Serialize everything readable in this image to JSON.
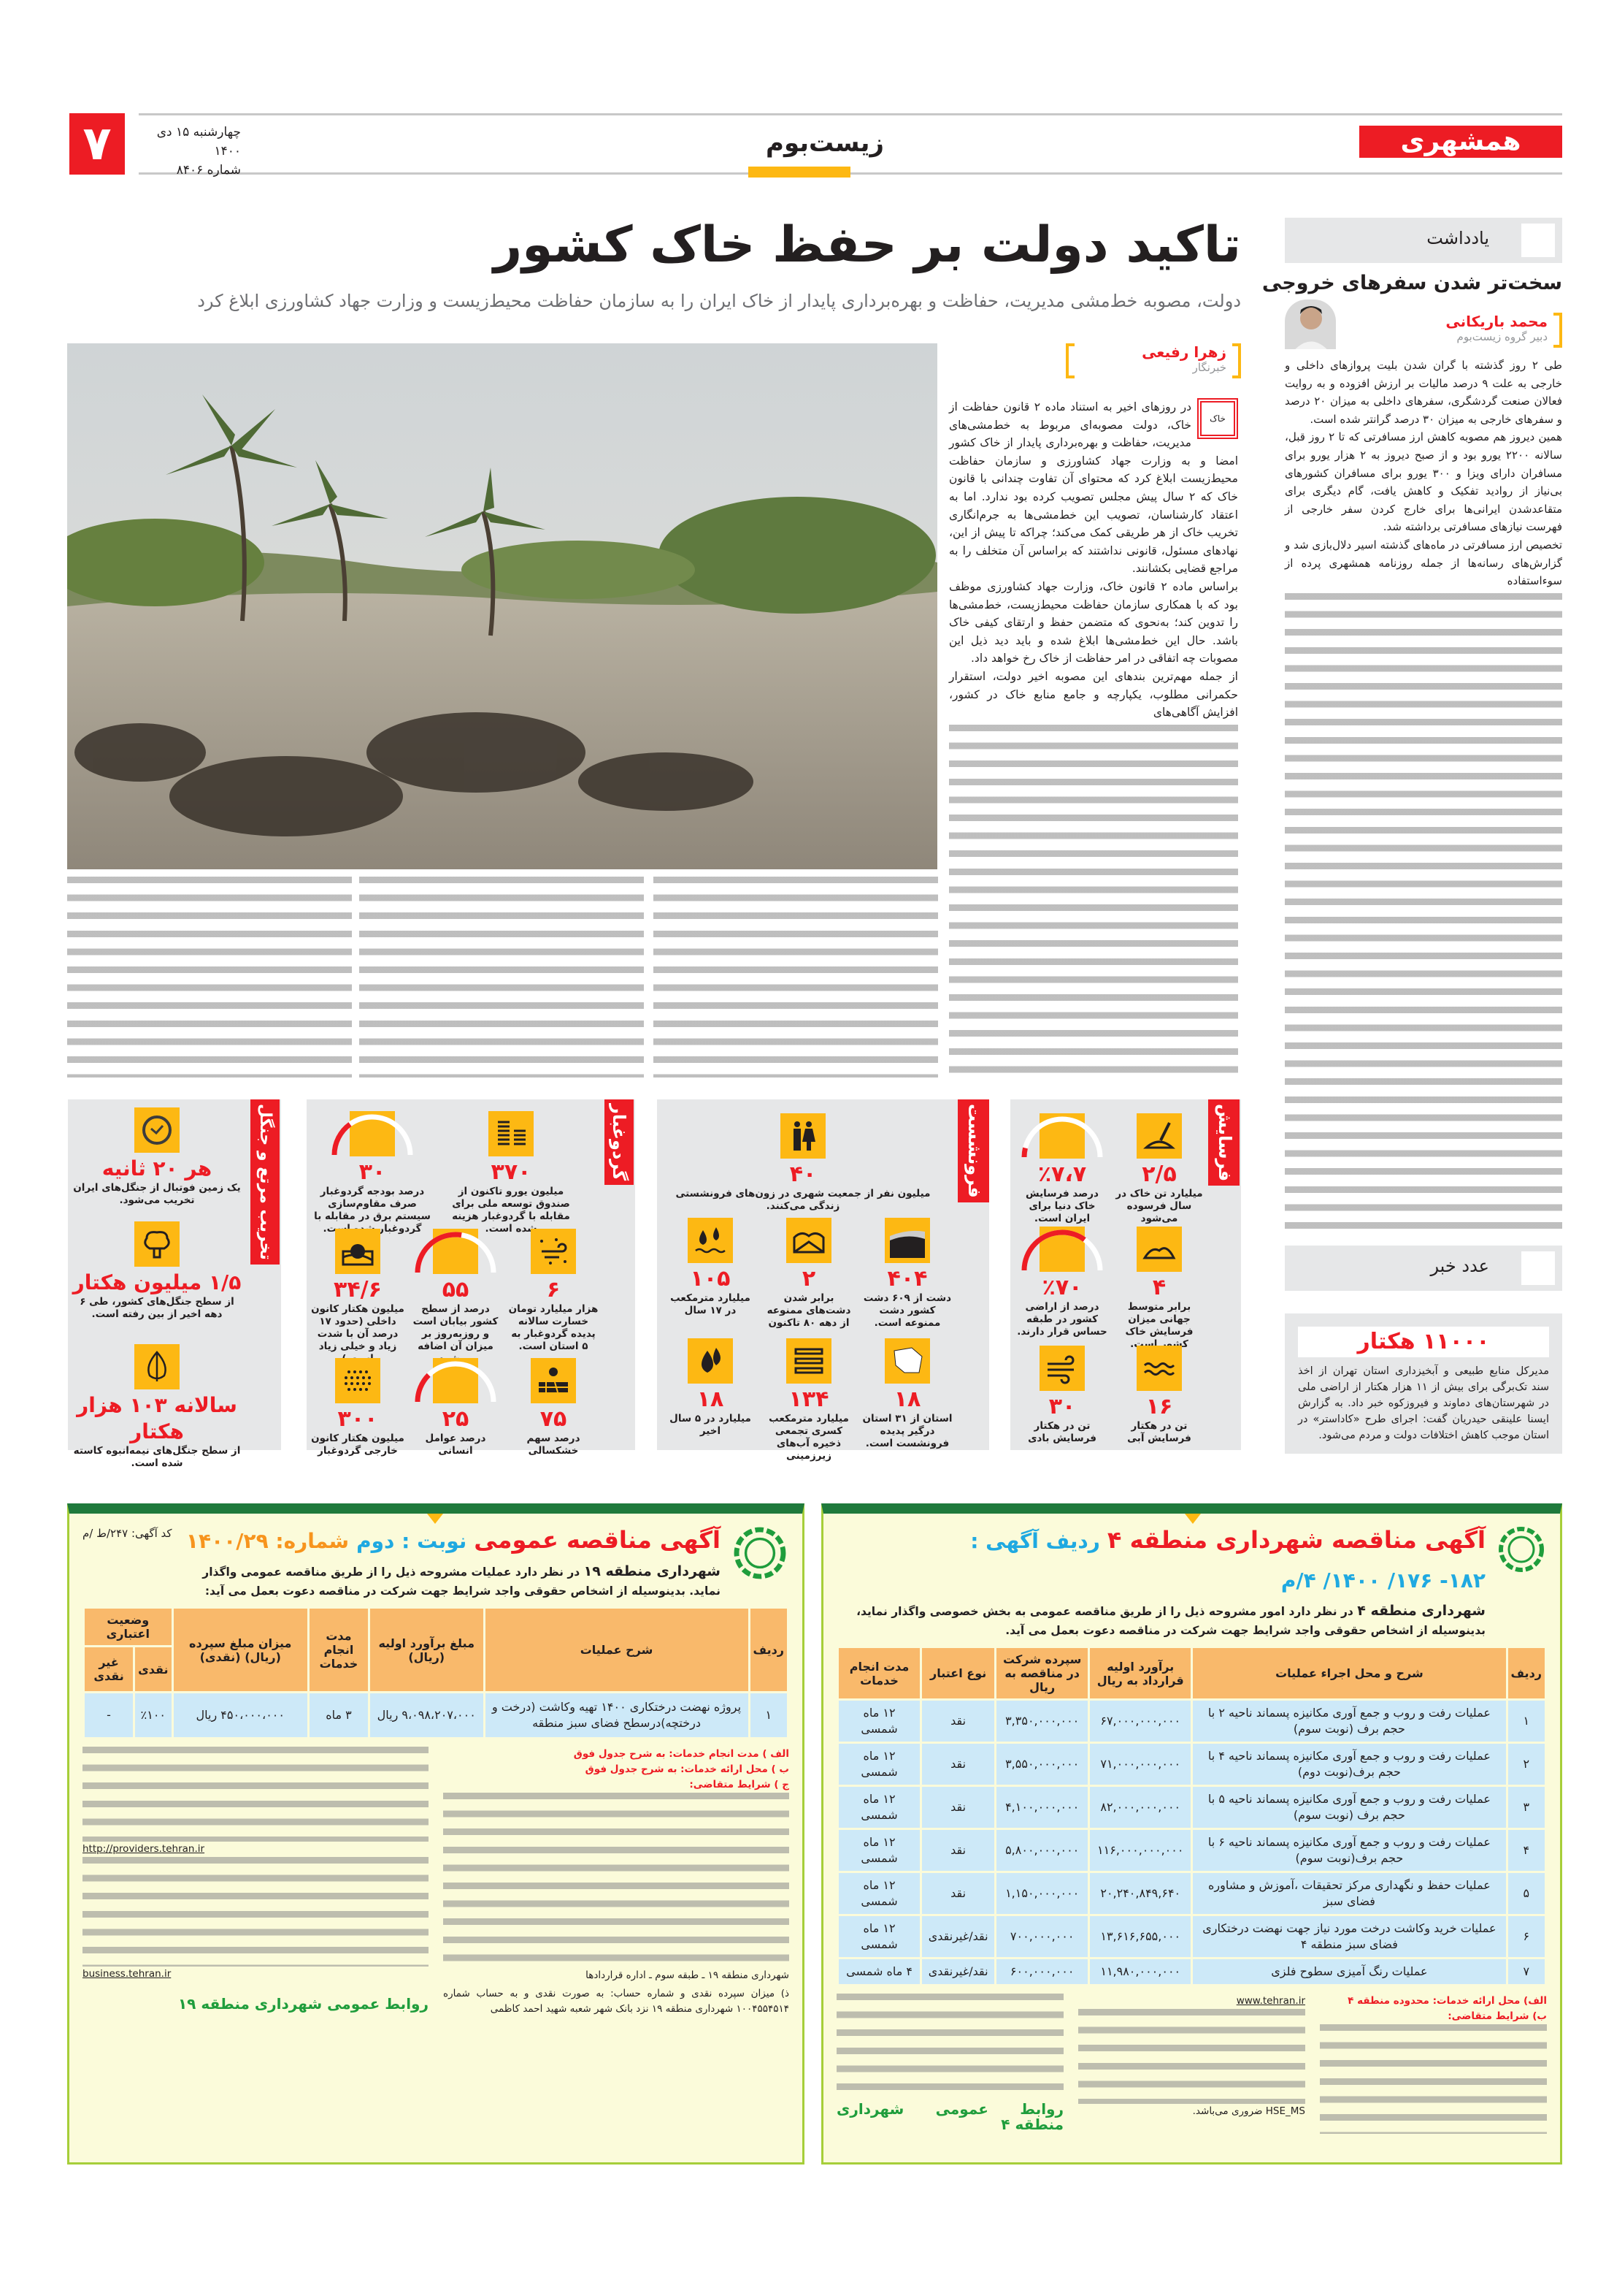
{
  "masthead": {
    "logo": "همشهری",
    "section": "زیست‌بوم",
    "page_number": "۷",
    "date": "چهارشنبه ۱۵ دی ۱۴۰۰",
    "issue": "شماره ۸۴۰۶",
    "accent": "#ed1c24",
    "section_bar": "#fdb813"
  },
  "lead": {
    "headline": "تاکید دولت بر حفظ خاک کشور",
    "subtitle": "دولت، مصوبه خط‌مشی مدیریت، حفاظت و بهره‌برداری پایدار از خاک ایران را به سازمان حفاظت محیط‌زیست و وزارت جهاد کشاورزی ابلاغ کرد",
    "author": "زهرا رفیعی",
    "author_role": "خبرنگار",
    "tag": "خاک",
    "paragraphs": [
      "در روزهای اخیر به استناد ماده ۲ قانون حفاظت از خاک، دولت مصوبه‌ای مربوط به خط‌مشی‌های مدیریت، حفاظت و بهره‌برداری پایدار از خاک کشور امضا و به وزارت جهاد کشاورزی و سازمان حفاظت محیط‌زیست ابلاغ کرد که محتوای آن تفاوت چندانی با قانون خاک که ۲ سال پیش مجلس تصویب کرده بود ندارد. اما به اعتقاد کارشناسان، تصویب این خط‌مشی‌ها به جرم‌انگاری تخریب خاک از هر طریقی کمک می‌کند؛ چراکه تا پیش از این، نهادهای مسئول، قانونی نداشتند که براساس آن متخلف را به مراجع قضایی بکشانند.",
      "براساس ماده ۲ قانون خاک، وزارت جهاد کشاورزی موظف بود که با همکاری سازمان حفاظت محیط‌زیست، خط‌مشی‌ها را تدوین کند؛ به‌نحوی که متضمن حفظ و ارتقای کیفی خاک باشد. حال این خط‌مشی‌ها ابلاغ شده و باید دید ذیل این مصوبات چه اتفاقی در امر حفاظت از خاک رخ خواهد داد.",
      "از جمله مهم‌ترین بندهای این مصوبه اخیر دولت، استقرار حکمرانی مطلوب، یکپارچه و جامع منابع خاک در کشور، افزایش آگاهی‌های"
    ]
  },
  "note": {
    "header": "یادداشت",
    "title": "سخت‌تر شدن سفرهای خروجی",
    "author": "محمد باریکانی",
    "author_role": "دبیر گروه زیست‌بوم",
    "paragraphs": [
      "طی ۲ روز گذشته با گران شدن بلیت پروازهای داخلی و خارجی به علت ۹ درصد مالیات بر ارزش افزوده و به روایت فعالان صنعت گردشگری، سفرهای داخلی به میزان ۲۰ درصد و سفرهای خارجی به میزان ۳۰ درصد گرانتر شده است.",
      "همین دیروز هم مصوبه کاهش ارز مسافرتی که تا ۲ روز قبل، سالانه ۲۲۰۰ یورو بود و از صبح دیروز به ۲ هزار یورو برای مسافران دارای ویزا و ۳۰۰ یورو برای مسافران کشورهای بی‌نیاز از روادید تفکیک و کاهش یافت، گام دیگری برای متقاعدشدن ایرانی‌ها برای خارج کردن سفر خارجی از فهرست نیازهای مسافرتی برداشته شد.",
      "تخصیص ارز مسافرتی در ماه‌های گذشته اسیر دلال‌بازی شد و گزارش‌های رسانه‌ها از جمله روزنامه همشهری پرده از سوءاستفاده"
    ]
  },
  "number_news": {
    "header": "عدد خبر",
    "figure": "۱۱۰۰۰ هکتار",
    "text": "مدیرکل منابع طبیعی و آبخیزداری استان تهران از اخذ سند تک‌برگی برای بیش از ۱۱ هزار هکتار از اراضی ملی در شهرستان‌های دماوند و فیروزکوه خبر داد. به گزارش ایسنا علینقی حیدریان گفت: اجرای طرح «کاداستر» در استان موجب کاهش اختلافات دولت و مردم می‌شود."
  },
  "infographic": [
    {
      "label": "فرسایش",
      "items": [
        {
          "icon": "shovel-icon",
          "value": "۲/۵",
          "caption": "میلیارد تن خاک در سال فرسوده می‌شود"
        },
        {
          "icon": "gauge-icon",
          "value": "٪۷،۷",
          "caption": "درصد فرسایش خاک دنیا برای ایران است.",
          "percent": 7.7
        },
        {
          "icon": "soil-pile-icon",
          "value": "۴",
          "caption": "برابر متوسط جهانی میزان فرسایش خاک کشور است."
        },
        {
          "icon": "gauge-icon",
          "value": "٪۷۰",
          "caption": "درصد از اراضی کشور در طبقه حساس قرار دارند.",
          "percent": 70
        },
        {
          "icon": "water-waves-icon",
          "value": "۱۶",
          "caption": "تن در هکتار فرسایش آبی"
        },
        {
          "icon": "wind-icon",
          "value": "۳۰",
          "caption": "تن در هکتار فرسایش بادی"
        }
      ]
    },
    {
      "label": "فرونشست",
      "items": [
        {
          "icon": "people-icon",
          "value": "۴۰",
          "caption": "میلیون نفر از جمعیت شهری در زون‌های فرونشستی زندگی می‌کنند."
        },
        {
          "icon": "land-layers-icon",
          "value": "۴۰۴",
          "caption": "دشت از ۶۰۹ دشت کشور دشت ممنوعه است."
        },
        {
          "icon": "plains-icon",
          "value": "۲",
          "caption": "برابر شدن دشت‌های ممنوعه از دهه ۸۰ تاکنون"
        },
        {
          "icon": "water-drops-icon",
          "value": "۱۰۵",
          "caption": "میلیارد مترمکعب در ۱۷ سال"
        },
        {
          "icon": "iran-map-icon",
          "value": "۱۸",
          "caption": "استان از ۳۱ استان درگیر پدیده فرونشست است."
        },
        {
          "icon": "aquifer-icon",
          "value": "۱۳۴",
          "caption": "میلیارد مترمکعب کسری تجمعی ذخیره آب‌های زیرزمینی"
        },
        {
          "icon": "drops-icon",
          "value": "۱۸",
          "caption": "میلیارد در ۵ سال اخیر"
        }
      ]
    },
    {
      "label": "گردوغبار",
      "items": [
        {
          "icon": "coins-icon",
          "value": "۳۷۰",
          "caption": "میلیون یورو تاکنون از صندوق توسعه ملی برای مقابله با گردوغبار هزینه شده است."
        },
        {
          "icon": "gauge-icon",
          "value": "۳۰",
          "caption": "درصد بودجه گردوغبار صرف مقاوم‌سازی سیستم برق در مقابله با گردوغبار شده است.",
          "percent": 30
        },
        {
          "icon": "dust-wind-icon",
          "value": "۶",
          "caption": "هزار میلیارد تومان خسارت سالانه پدیده گردوغبار به ۵ استان است."
        },
        {
          "icon": "gauge-icon",
          "value": "۵۵",
          "caption": "درصد از سطح کشور بیابان است و روزبه‌روز بر میزان آن اضافه می‌شود.",
          "percent": 55
        },
        {
          "icon": "desert-sun-icon",
          "value": "۳۴/۶",
          "caption": "میلیون هکتار کانون داخلی (حدود ۱۷ درصد آن با شدت زیاد و خیلی زیاد است.)"
        },
        {
          "icon": "drought-icon",
          "value": "۷۵",
          "caption": "درصد سهم خشکسالی"
        },
        {
          "icon": "gauge-icon",
          "value": "۲۵",
          "caption": "درصد عوامل انسانی",
          "percent": 25
        },
        {
          "icon": "dust-dots-icon",
          "value": "۳۰۰",
          "caption": "میلیون هکتار کانون خارجی گردوغبار"
        }
      ]
    },
    {
      "label": "تخریب مرتع و جنگل",
      "items": [
        {
          "icon": "clock-icon",
          "value": "هر ۲۰ ثانیه",
          "caption": "یک زمین فوتبال از جنگل‌های ایران تخریب می‌شود."
        },
        {
          "icon": "tree-icon",
          "value": "۱/۵ میلیون هکتار",
          "caption": "از سطح جنگل‌های کشور، طی ۶ دهه اخیر از بین رفته است."
        },
        {
          "icon": "leaf-icon",
          "value": "سالانه ۱۰۳ هزار هکتار",
          "caption": "از سطح جنگل‌های نیمه‌انبوه کاسته شده است."
        }
      ]
    }
  ],
  "ad_right": {
    "title": "آگهی مناقصه شهرداری منطقه ۴",
    "code_label": "ردیف آگهی :",
    "code": "۱۸۲- ۱۷۶/ ۱۴۰۰/ ۴/م",
    "intro_bold": "شهرداری منطقه ۴",
    "intro": "در نظر دارد امور مشروحه ذیل را از طریق مناقصه عمومی به بخش خصوصی واگذار نماید، بدینوسیله از اشخاص حقوقی واجد شرایط جهت شرکت در مناقصه دعوت بعمل می آید.",
    "columns": [
      "ردیف",
      "شرح و محل اجراء عملیات",
      "برآورد اولیه قرارداد به ریال",
      "سپرده شرکت در مناقصه به ریال",
      "نوع اعتبار",
      "مدت انجام خدمات"
    ],
    "rows": [
      [
        "۱",
        "عملیات رفت و روب و جمع آوری مکانیزه پسماند ناحیه ۲ با حجم برف (نوبت سوم)",
        "۶۷,۰۰۰,۰۰۰,۰۰۰",
        "۳,۳۵۰,۰۰۰,۰۰۰",
        "نقد",
        "۱۲ ماه شمسی"
      ],
      [
        "۲",
        "عملیات رفت و روب و جمع آوری مکانیزه پسماند ناحیه ۴ با حجم برف(نوبت دوم)",
        "۷۱,۰۰۰,۰۰۰,۰۰۰",
        "۳,۵۵۰,۰۰۰,۰۰۰",
        "نقد",
        "۱۲ ماه شمسی"
      ],
      [
        "۳",
        "عملیات رفت و روب و جمع آوری مکانیزه پسماند ناحیه ۵ با حجم برف (نوبت سوم)",
        "۸۲,۰۰۰,۰۰۰,۰۰۰",
        "۴,۱۰۰,۰۰۰,۰۰۰",
        "نقد",
        "۱۲ ماه شمسی"
      ],
      [
        "۴",
        "عملیات رفت و روب و جمع آوری مکانیزه پسماند ناحیه ۶ با حجم برف(نوبت سوم)",
        "۱۱۶,۰۰۰,۰۰۰,۰۰۰",
        "۵,۸۰۰,۰۰۰,۰۰۰",
        "نقد",
        "۱۲ ماه شمسی"
      ],
      [
        "۵",
        "عملیات حفظ و نگهداری مرکز تحقیقات ،آموزش و مشاوره فضای سبز",
        "۲۰,۲۴۰,۸۴۹,۶۴۰",
        "۱,۱۵۰,۰۰۰,۰۰۰",
        "نقد",
        "۱۲ ماه شمسی"
      ],
      [
        "۶",
        "عملیات خرید وکاشت درخت مورد نیاز جهت نهضت درختکاری فضای سبز منطقه ۴",
        "۱۳,۶۱۶,۶۵۵,۰۰۰",
        "۷۰۰,۰۰۰,۰۰۰",
        "نقد/غیرنقدی",
        "۱۲ ماه شمسی"
      ],
      [
        "۷",
        "عملیات رنگ آمیزی سطوح فلزی",
        "۱۱,۹۸۰,۰۰۰,۰۰۰",
        "۶۰۰,۰۰۰,۰۰۰",
        "نقد/غیرنقدی",
        "۴ ماه شمسی"
      ]
    ],
    "notes": [
      "الف) محل ارائه خدمات: محدوده منطقه ۴",
      "ب) شرایط متقاضی:",
      "www.tehran.ir",
      "HSE_MS ضروری می‌باشد."
    ],
    "footer": "روابط عمومی شهرداری منطقه ۴"
  },
  "ad_left": {
    "title": "آگهی مناقصه عمومی",
    "round_label": "نوبت : دوم",
    "number_label": "شماره: ۱۴۰۰/۲۹",
    "code": "کد آگهی: ۲۴۷/ط /م",
    "intro_bold": "شهرداری منطقه ۱۹",
    "intro": "در نظر دارد عملیات مشروحه ذیل را از طریق مناقصه عمومی واگذار نماید. بدینوسیله از اشخاص حقوقی واجد شرایط جهت شرکت در مناقصه دعوت بعمل می آید:",
    "columns": [
      "ردیف",
      "شرح عملیات",
      "مبلغ برآورد اولیه (ریال)",
      "مدت انجام خدمات",
      "میزان مبلغ سپرده (ریال) (نقدی)",
      "وضعیت اعتباری",
      "نقدی",
      "غیر نقدی"
    ],
    "rows": [
      [
        "۱",
        "پروژه نهضت درختکاری ۱۴۰۰ تهیه وکاشت (درخت و درختچه)درسطح فضای سبز منطقه",
        "۹،۰۹۸،۲۰۷،۰۰۰ ریال",
        "۳ ماه",
        "۴۵۰،۰۰۰،۰۰۰ ریال",
        "٪۱۰۰",
        "-"
      ]
    ],
    "notes": [
      "الف ) مدت انجام خدمات: به شرح جدول فوق",
      "ب ) محل ارائه خدمات: به شرح جدول فوق",
      "ج ) شرایط متقاضی:",
      "http://providers.tehran.ir",
      "business.tehran.ir",
      "ذ) میزان سپرده نقدی و شماره حساب: به صورت نقدی و به حساب شماره ۱۰۰۴۵۵۴۵۱۴ شهرداری منطقه ۱۹ نزد بانک شهر شعبه شهید احمد کاظمی",
      "شهرداری منطقه ۱۹ ـ طبقه سوم ـ اداره قراردادها"
    ],
    "footer": "روابط عمومی شهرداری منطقه ۱۹"
  }
}
